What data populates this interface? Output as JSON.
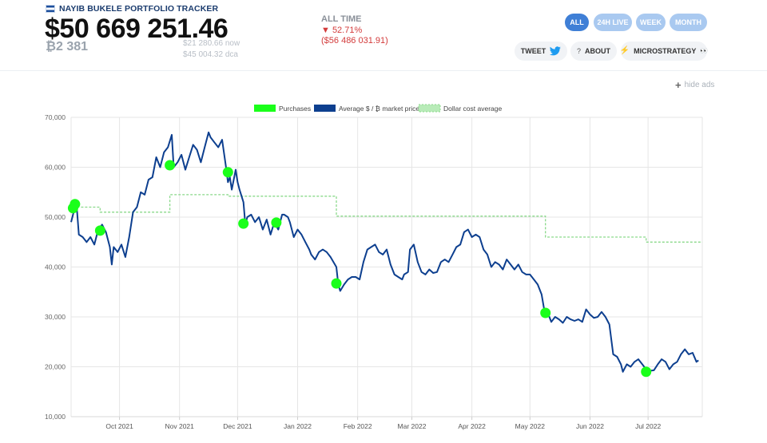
{
  "header": {
    "brand": "NAYIB BUKELE PORTFOLIO TRACKER",
    "portfolio_value": "$50 669 251.46",
    "btc_amount": "₿2 381",
    "now_price": "$21 280.66 now",
    "dca_price": "$45 004.32 dca"
  },
  "all_time": {
    "title": "ALL TIME",
    "percent": "▼ 52.71%",
    "loss": "($56 486 031.91)"
  },
  "ranges": [
    "ALL",
    "24H LIVE",
    "WEEK",
    "MONTH"
  ],
  "active_range": "ALL",
  "actions": {
    "tweet": "TWEET",
    "about": "ABOUT",
    "about_prefix": "?",
    "microstrategy": "MICROSTRATEGY",
    "microstrategy_suffix": "👀"
  },
  "hide_ads": "hide ads",
  "colors": {
    "price": "#0d3f8f",
    "purchase": "#1aff1a",
    "dca": "#8ad98a",
    "pill": "#a9c9f0",
    "pill_active": "#3f7fd6",
    "loss": "#d33b3b"
  },
  "icons": {
    "tweet": "twitter-bird-icon",
    "microstrategy": "lightning-icon",
    "hide_ads": "plus-icon",
    "flag": "el-salvador-flag-icon"
  },
  "chart_data": {
    "type": "line",
    "legend": [
      "Purchases",
      "Average $ / ₿ market price",
      "Dollar cost average"
    ],
    "legend_position": "top-center",
    "ylim": [
      10000,
      70000
    ],
    "yticks": [
      "10,000",
      "20,000",
      "30,000",
      "40,000",
      "50,000",
      "60,000",
      "70,000"
    ],
    "xlim": [
      "2021-09-06",
      "2022-07-29"
    ],
    "xticks": [
      {
        "date": "2021-10-01",
        "label": "Oct 2021"
      },
      {
        "date": "2021-11-01",
        "label": "Nov 2021"
      },
      {
        "date": "2021-12-01",
        "label": "Dec 2021"
      },
      {
        "date": "2022-01-01",
        "label": "Jan 2022"
      },
      {
        "date": "2022-02-01",
        "label": "Feb 2022"
      },
      {
        "date": "2022-03-01",
        "label": "Mar 2022"
      },
      {
        "date": "2022-04-01",
        "label": "Apr 2022"
      },
      {
        "date": "2022-05-01",
        "label": "May 2022"
      },
      {
        "date": "2022-06-01",
        "label": "Jun 2022"
      },
      {
        "date": "2022-07-01",
        "label": "Jul 2022"
      }
    ],
    "grid": true,
    "series": [
      {
        "name": "Average $ / ₿ market price",
        "points": [
          [
            "2021-09-06",
            49000
          ],
          [
            "2021-09-07",
            50500
          ],
          [
            "2021-09-08",
            52000
          ],
          [
            "2021-09-09",
            51500
          ],
          [
            "2021-09-10",
            46500
          ],
          [
            "2021-09-12",
            46000
          ],
          [
            "2021-09-14",
            45000
          ],
          [
            "2021-09-16",
            46000
          ],
          [
            "2021-09-18",
            44500
          ],
          [
            "2021-09-20",
            47500
          ],
          [
            "2021-09-22",
            48500
          ],
          [
            "2021-09-24",
            47000
          ],
          [
            "2021-09-26",
            44000
          ],
          [
            "2021-09-27",
            40500
          ],
          [
            "2021-09-28",
            44000
          ],
          [
            "2021-09-30",
            43000
          ],
          [
            "2021-10-02",
            44500
          ],
          [
            "2021-10-04",
            42000
          ],
          [
            "2021-10-06",
            46000
          ],
          [
            "2021-10-08",
            51000
          ],
          [
            "2021-10-10",
            52000
          ],
          [
            "2021-10-12",
            55000
          ],
          [
            "2021-10-14",
            54500
          ],
          [
            "2021-10-16",
            57500
          ],
          [
            "2021-10-18",
            58000
          ],
          [
            "2021-10-20",
            62000
          ],
          [
            "2021-10-22",
            60000
          ],
          [
            "2021-10-24",
            63000
          ],
          [
            "2021-10-26",
            64000
          ],
          [
            "2021-10-28",
            66500
          ],
          [
            "2021-10-29",
            60000
          ],
          [
            "2021-10-31",
            61000
          ],
          [
            "2021-11-02",
            62500
          ],
          [
            "2021-11-04",
            59500
          ],
          [
            "2021-11-06",
            62000
          ],
          [
            "2021-11-08",
            64500
          ],
          [
            "2021-11-10",
            63500
          ],
          [
            "2021-11-12",
            61000
          ],
          [
            "2021-11-14",
            64000
          ],
          [
            "2021-11-16",
            67000
          ],
          [
            "2021-11-17",
            66000
          ],
          [
            "2021-11-19",
            65000
          ],
          [
            "2021-11-21",
            64000
          ],
          [
            "2021-11-23",
            65500
          ],
          [
            "2021-11-25",
            60000
          ],
          [
            "2021-11-26",
            57000
          ],
          [
            "2021-11-27",
            58000
          ],
          [
            "2021-11-28",
            55500
          ],
          [
            "2021-11-30",
            59500
          ],
          [
            "2021-12-01",
            57000
          ],
          [
            "2021-12-02",
            55500
          ],
          [
            "2021-12-04",
            53000
          ],
          [
            "2021-12-05",
            48500
          ],
          [
            "2021-12-06",
            50000
          ],
          [
            "2021-12-08",
            50500
          ],
          [
            "2021-12-10",
            49000
          ],
          [
            "2021-12-12",
            50000
          ],
          [
            "2021-12-14",
            47500
          ],
          [
            "2021-12-16",
            49500
          ],
          [
            "2021-12-18",
            46500
          ],
          [
            "2021-12-20",
            49000
          ],
          [
            "2021-12-22",
            47500
          ],
          [
            "2021-12-24",
            50500
          ],
          [
            "2021-12-25",
            50500
          ],
          [
            "2021-12-27",
            50000
          ],
          [
            "2021-12-28",
            49000
          ],
          [
            "2021-12-30",
            46000
          ],
          [
            "2022-01-01",
            47500
          ],
          [
            "2022-01-03",
            46500
          ],
          [
            "2022-01-05",
            45000
          ],
          [
            "2022-01-07",
            43500
          ],
          [
            "2022-01-08",
            42500
          ],
          [
            "2022-01-10",
            41500
          ],
          [
            "2022-01-12",
            43000
          ],
          [
            "2022-01-14",
            43500
          ],
          [
            "2022-01-16",
            43000
          ],
          [
            "2022-01-18",
            42000
          ],
          [
            "2022-01-21",
            40000
          ],
          [
            "2022-01-22",
            36500
          ],
          [
            "2022-01-23",
            35200
          ],
          [
            "2022-01-25",
            36500
          ],
          [
            "2022-01-27",
            37500
          ],
          [
            "2022-01-29",
            38000
          ],
          [
            "2022-01-31",
            38000
          ],
          [
            "2022-02-02",
            37500
          ],
          [
            "2022-02-04",
            41000
          ],
          [
            "2022-02-06",
            43500
          ],
          [
            "2022-02-08",
            44000
          ],
          [
            "2022-02-10",
            44500
          ],
          [
            "2022-02-12",
            43000
          ],
          [
            "2022-02-14",
            42500
          ],
          [
            "2022-02-16",
            43500
          ],
          [
            "2022-02-18",
            40500
          ],
          [
            "2022-02-20",
            38500
          ],
          [
            "2022-02-22",
            38000
          ],
          [
            "2022-02-24",
            37500
          ],
          [
            "2022-02-25",
            38500
          ],
          [
            "2022-02-27",
            39000
          ],
          [
            "2022-02-28",
            43500
          ],
          [
            "2022-03-02",
            44500
          ],
          [
            "2022-03-04",
            41000
          ],
          [
            "2022-03-06",
            39000
          ],
          [
            "2022-03-08",
            38500
          ],
          [
            "2022-03-10",
            39500
          ],
          [
            "2022-03-12",
            38800
          ],
          [
            "2022-03-14",
            39000
          ],
          [
            "2022-03-16",
            41000
          ],
          [
            "2022-03-18",
            41500
          ],
          [
            "2022-03-20",
            41000
          ],
          [
            "2022-03-22",
            42500
          ],
          [
            "2022-03-24",
            44000
          ],
          [
            "2022-03-26",
            44500
          ],
          [
            "2022-03-28",
            47000
          ],
          [
            "2022-03-30",
            47500
          ],
          [
            "2022-04-01",
            46000
          ],
          [
            "2022-04-03",
            46500
          ],
          [
            "2022-04-05",
            46000
          ],
          [
            "2022-04-07",
            43500
          ],
          [
            "2022-04-09",
            42500
          ],
          [
            "2022-04-11",
            40000
          ],
          [
            "2022-04-13",
            41000
          ],
          [
            "2022-04-15",
            40500
          ],
          [
            "2022-04-17",
            39500
          ],
          [
            "2022-04-19",
            41500
          ],
          [
            "2022-04-21",
            40500
          ],
          [
            "2022-04-23",
            39500
          ],
          [
            "2022-04-25",
            40500
          ],
          [
            "2022-04-27",
            39000
          ],
          [
            "2022-04-29",
            38500
          ],
          [
            "2022-05-01",
            38500
          ],
          [
            "2022-05-03",
            37500
          ],
          [
            "2022-05-05",
            36500
          ],
          [
            "2022-05-07",
            34500
          ],
          [
            "2022-05-09",
            30000
          ],
          [
            "2022-05-10",
            31000
          ],
          [
            "2022-05-12",
            29000
          ],
          [
            "2022-05-14",
            30000
          ],
          [
            "2022-05-16",
            29500
          ],
          [
            "2022-05-18",
            28800
          ],
          [
            "2022-05-20",
            30000
          ],
          [
            "2022-05-22",
            29500
          ],
          [
            "2022-05-24",
            29200
          ],
          [
            "2022-05-26",
            29500
          ],
          [
            "2022-05-28",
            29000
          ],
          [
            "2022-05-30",
            31500
          ],
          [
            "2022-06-01",
            30500
          ],
          [
            "2022-06-03",
            29800
          ],
          [
            "2022-06-05",
            30000
          ],
          [
            "2022-06-07",
            31000
          ],
          [
            "2022-06-09",
            30000
          ],
          [
            "2022-06-11",
            28500
          ],
          [
            "2022-06-13",
            22500
          ],
          [
            "2022-06-15",
            22000
          ],
          [
            "2022-06-17",
            20500
          ],
          [
            "2022-06-18",
            19000
          ],
          [
            "2022-06-20",
            20500
          ],
          [
            "2022-06-22",
            20000
          ],
          [
            "2022-06-24",
            21000
          ],
          [
            "2022-06-26",
            21500
          ],
          [
            "2022-06-28",
            20500
          ],
          [
            "2022-06-30",
            19500
          ],
          [
            "2022-07-02",
            19200
          ],
          [
            "2022-07-04",
            19300
          ],
          [
            "2022-07-06",
            20500
          ],
          [
            "2022-07-08",
            21500
          ],
          [
            "2022-07-10",
            21000
          ],
          [
            "2022-07-12",
            19500
          ],
          [
            "2022-07-14",
            20500
          ],
          [
            "2022-07-16",
            21000
          ],
          [
            "2022-07-18",
            22500
          ],
          [
            "2022-07-20",
            23500
          ],
          [
            "2022-07-22",
            22500
          ],
          [
            "2022-07-24",
            22800
          ],
          [
            "2022-07-26",
            21000
          ],
          [
            "2022-07-27",
            21300
          ]
        ]
      },
      {
        "name": "Dollar cost average",
        "points": [
          [
            "2021-09-07",
            52000
          ],
          [
            "2021-09-21",
            52000
          ],
          [
            "2021-09-21",
            51000
          ],
          [
            "2021-10-27",
            51000
          ],
          [
            "2021-10-27",
            54500
          ],
          [
            "2021-11-26",
            54500
          ],
          [
            "2021-11-26",
            54200
          ],
          [
            "2022-01-21",
            54200
          ],
          [
            "2022-01-21",
            50200
          ],
          [
            "2022-05-09",
            50200
          ],
          [
            "2022-05-09",
            46000
          ],
          [
            "2022-06-30",
            46000
          ],
          [
            "2022-06-30",
            45000
          ],
          [
            "2022-07-29",
            45000
          ]
        ]
      },
      {
        "name": "Purchases",
        "points": [
          [
            "2021-09-07",
            51800
          ],
          [
            "2021-09-08",
            52600
          ],
          [
            "2021-09-21",
            47300
          ],
          [
            "2021-10-27",
            60400
          ],
          [
            "2021-11-26",
            59000
          ],
          [
            "2021-12-04",
            48700
          ],
          [
            "2021-12-21",
            48900
          ],
          [
            "2022-01-21",
            36700
          ],
          [
            "2022-05-09",
            30800
          ],
          [
            "2022-06-30",
            19000
          ]
        ]
      }
    ]
  }
}
